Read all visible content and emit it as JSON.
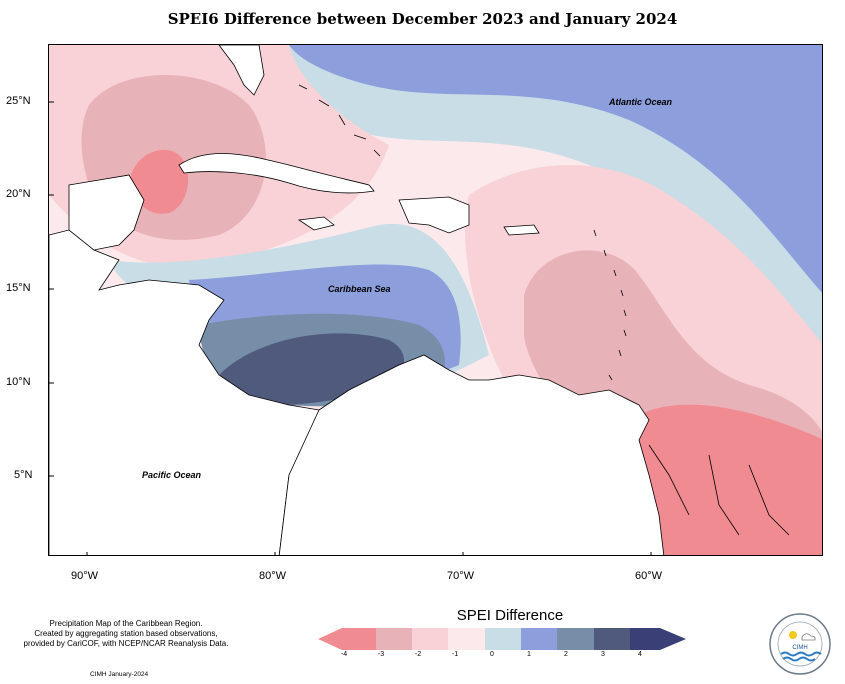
{
  "title": "SPEI6 Difference between December 2023 and January 2024",
  "map": {
    "type": "choropleth contour map",
    "lon_range": [
      -92,
      -52
    ],
    "lat_range": [
      1,
      28
    ],
    "lat_ticks": [
      {
        "value": 25,
        "label": "25°N"
      },
      {
        "value": 20,
        "label": "20°N"
      },
      {
        "value": 15,
        "label": "15°N"
      },
      {
        "value": 10,
        "label": "10°N"
      },
      {
        "value": 5,
        "label": "5°N"
      }
    ],
    "lon_ticks": [
      {
        "value": -90,
        "label": "90°W"
      },
      {
        "value": -80,
        "label": "80°W"
      },
      {
        "value": -70,
        "label": "70°W"
      },
      {
        "value": -60,
        "label": "60°W"
      }
    ],
    "ocean_labels": [
      {
        "text": "Atlantic Ocean",
        "lon": -65.5,
        "lat": 24.1
      },
      {
        "text": "Caribbean Sea",
        "lon": -77.1,
        "lat": 15.1
      },
      {
        "text": "Pacific Ocean",
        "lon": -87.4,
        "lat": 5.0
      }
    ]
  },
  "legend": {
    "title": "SPEI Difference",
    "labels": [
      "-4",
      "-3",
      "-2",
      "-1",
      "0",
      "1",
      "2",
      "3",
      "4"
    ],
    "classes": [
      {
        "range": "< -4 to -3",
        "color": "#f08b91"
      },
      {
        "range": "-3 to -2",
        "color": "#e8b3b8"
      },
      {
        "range": "-2 to -1",
        "color": "#f8d2d7"
      },
      {
        "range": "-1 to 0",
        "color": "#fbe9ec"
      },
      {
        "range": "0 to 1",
        "color": "#c8dde6"
      },
      {
        "range": "1 to 2",
        "color": "#8c9fdc"
      },
      {
        "range": "2 to 3",
        "color": "#768ea8"
      },
      {
        "range": "3 to > 4",
        "color": "#4f5a7d"
      }
    ]
  },
  "note": {
    "line1": "Precipitation Map of the Caribbean Region.",
    "line2": "Created by aggregating station based observations,",
    "line3": "provided by CariCOF, with NCEP/NCAR Reanalysis Data."
  },
  "credit": "CIMH January-2024",
  "logo": {
    "text": "CIMH",
    "icon": "cimh-logo-icon"
  }
}
